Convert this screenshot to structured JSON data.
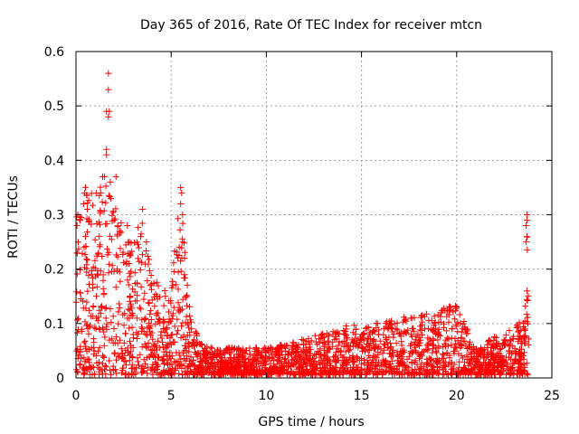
{
  "chart_data": {
    "type": "scatter",
    "title": "Day 365 of 2016, Rate Of TEC Index for receiver mtcn",
    "xlabel": "GPS time / hours",
    "ylabel": "ROTI / TECUs",
    "xlim": [
      0,
      25
    ],
    "ylim": [
      0,
      0.6
    ],
    "xticks": [
      0,
      5,
      10,
      15,
      20,
      25
    ],
    "xtick_labels": [
      "0",
      "5",
      "10",
      "15",
      "20",
      "25"
    ],
    "yticks": [
      0,
      0.1,
      0.2,
      0.3,
      0.4,
      0.5,
      0.6
    ],
    "ytick_labels": [
      "0",
      "0.1",
      "0.2",
      "0.3",
      "0.4",
      "0.5",
      "0.6"
    ],
    "grid": true,
    "marker": "+",
    "marker_color": "#ff0000",
    "series": [
      {
        "name": "ROTI",
        "envelope": [
          {
            "x": 0.0,
            "y_max": 0.3
          },
          {
            "x": 0.5,
            "y_max": 0.34
          },
          {
            "x": 1.0,
            "y_max": 0.33
          },
          {
            "x": 1.5,
            "y_max": 0.37
          },
          {
            "x": 2.0,
            "y_max": 0.32
          },
          {
            "x": 2.5,
            "y_max": 0.28
          },
          {
            "x": 3.0,
            "y_max": 0.24
          },
          {
            "x": 3.5,
            "y_max": 0.3
          },
          {
            "x": 4.0,
            "y_max": 0.18
          },
          {
            "x": 4.5,
            "y_max": 0.16
          },
          {
            "x": 5.0,
            "y_max": 0.16
          },
          {
            "x": 5.5,
            "y_max": 0.35
          },
          {
            "x": 6.0,
            "y_max": 0.11
          },
          {
            "x": 6.5,
            "y_max": 0.06
          },
          {
            "x": 7.0,
            "y_max": 0.05
          },
          {
            "x": 10.0,
            "y_max": 0.05
          },
          {
            "x": 13.5,
            "y_max": 0.08
          },
          {
            "x": 14.2,
            "y_max": 0.09
          },
          {
            "x": 16.5,
            "y_max": 0.1
          },
          {
            "x": 20.0,
            "y_max": 0.13
          },
          {
            "x": 21.0,
            "y_max": 0.05
          },
          {
            "x": 23.5,
            "y_max": 0.1
          },
          {
            "x": 23.7,
            "y_max": 0.3
          },
          {
            "x": 23.8,
            "y_max": 0.05
          }
        ],
        "points": [
          {
            "x": 1.7,
            "y": 0.56
          },
          {
            "x": 1.7,
            "y": 0.53
          },
          {
            "x": 1.6,
            "y": 0.49
          },
          {
            "x": 1.75,
            "y": 0.49
          },
          {
            "x": 1.7,
            "y": 0.48
          },
          {
            "x": 1.6,
            "y": 0.42
          },
          {
            "x": 1.6,
            "y": 0.41
          },
          {
            "x": 1.5,
            "y": 0.37
          },
          {
            "x": 1.4,
            "y": 0.37
          },
          {
            "x": 1.8,
            "y": 0.36
          },
          {
            "x": 2.1,
            "y": 0.37
          },
          {
            "x": 1.3,
            "y": 0.34
          },
          {
            "x": 0.5,
            "y": 0.35
          },
          {
            "x": 0.45,
            "y": 0.34
          },
          {
            "x": 0.4,
            "y": 0.32
          },
          {
            "x": 0.1,
            "y": 0.3
          },
          {
            "x": 0.05,
            "y": 0.28
          },
          {
            "x": 0.6,
            "y": 0.31
          },
          {
            "x": 0.5,
            "y": 0.26
          },
          {
            "x": 2.0,
            "y": 0.29
          },
          {
            "x": 2.3,
            "y": 0.27
          },
          {
            "x": 2.7,
            "y": 0.28
          },
          {
            "x": 2.8,
            "y": 0.25
          },
          {
            "x": 3.5,
            "y": 0.31
          },
          {
            "x": 3.4,
            "y": 0.26
          },
          {
            "x": 3.7,
            "y": 0.25
          },
          {
            "x": 3.9,
            "y": 0.17
          },
          {
            "x": 5.5,
            "y": 0.35
          },
          {
            "x": 5.55,
            "y": 0.34
          },
          {
            "x": 5.5,
            "y": 0.32
          },
          {
            "x": 5.6,
            "y": 0.3
          },
          {
            "x": 5.6,
            "y": 0.25
          },
          {
            "x": 5.7,
            "y": 0.22
          },
          {
            "x": 5.7,
            "y": 0.19
          },
          {
            "x": 5.8,
            "y": 0.15
          },
          {
            "x": 23.7,
            "y": 0.3
          },
          {
            "x": 23.7,
            "y": 0.29
          },
          {
            "x": 23.65,
            "y": 0.28
          },
          {
            "x": 23.7,
            "y": 0.26
          },
          {
            "x": 23.65,
            "y": 0.25
          },
          {
            "x": 23.7,
            "y": 0.16
          },
          {
            "x": 20.0,
            "y": 0.13
          },
          {
            "x": 20.2,
            "y": 0.1
          },
          {
            "x": 16.5,
            "y": 0.1
          },
          {
            "x": 16.6,
            "y": 0.09
          },
          {
            "x": 14.2,
            "y": 0.09
          },
          {
            "x": 14.1,
            "y": 0.08
          },
          {
            "x": 13.5,
            "y": 0.08
          },
          {
            "x": 23.5,
            "y": 0.1
          },
          {
            "x": 23.6,
            "y": 0.09
          },
          {
            "x": 22.8,
            "y": 0.07
          },
          {
            "x": 19.0,
            "y": 0.07
          }
        ]
      }
    ]
  }
}
